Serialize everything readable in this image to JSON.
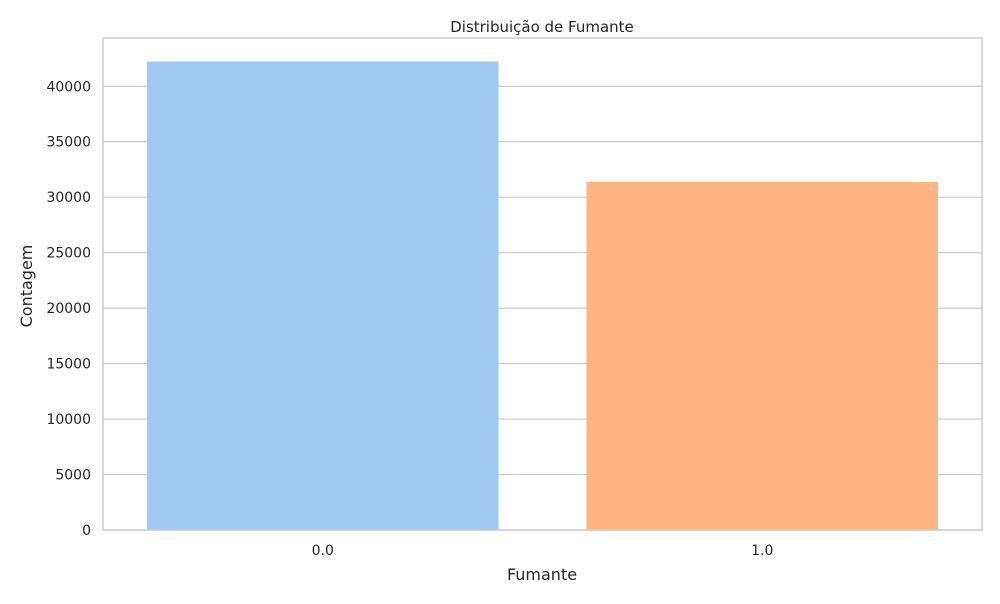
{
  "chart_data": {
    "type": "bar",
    "title": "Distribuição de Fumante",
    "xlabel": "Fumante",
    "ylabel": "Contagem",
    "categories": [
      "0.0",
      "1.0"
    ],
    "values": [
      42237,
      31378
    ],
    "ylim": [
      0,
      44352
    ],
    "yticks": [
      0,
      5000,
      10000,
      15000,
      20000,
      25000,
      30000,
      35000,
      40000
    ],
    "colors": [
      "#a1c9f4",
      "#ffb482"
    ],
    "grid": "horizontal",
    "background": "#ffffff",
    "grid_color": "#cccccc"
  }
}
